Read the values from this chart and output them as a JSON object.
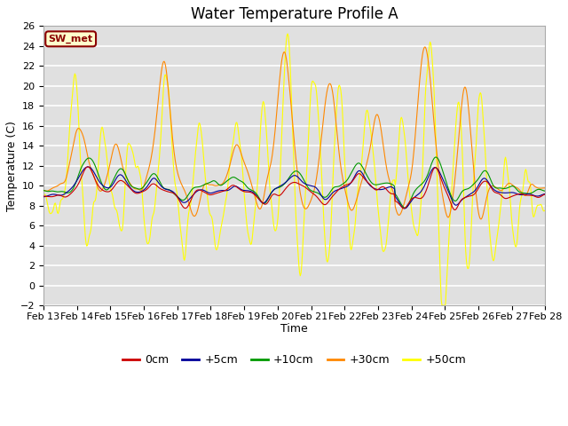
{
  "title": "Water Temperature Profile A",
  "xlabel": "Time",
  "ylabel": "Temperature (C)",
  "ylim": [
    -2,
    26
  ],
  "yticks": [
    -2,
    0,
    2,
    4,
    6,
    8,
    10,
    12,
    14,
    16,
    18,
    20,
    22,
    24,
    26
  ],
  "xtick_labels": [
    "Feb 13",
    "Feb 14",
    "Feb 15",
    "Feb 16",
    "Feb 17",
    "Feb 18",
    "Feb 19",
    "Feb 20",
    "Feb 21",
    "Feb 22",
    "Feb 23",
    "Feb 24",
    "Feb 25",
    "Feb 26",
    "Feb 27",
    "Feb 28"
  ],
  "line_colors": [
    "#cc0000",
    "#000099",
    "#009900",
    "#ff8800",
    "#ffff00"
  ],
  "line_labels": [
    "0cm",
    "+5cm",
    "+10cm",
    "+30cm",
    "+50cm"
  ],
  "legend_label": "SW_met",
  "bg_color": "#e0e0e0",
  "fig_bg": "#ffffff",
  "grid_color": "#ffffff",
  "title_fontsize": 12,
  "label_fontsize": 9,
  "tick_fontsize": 8
}
